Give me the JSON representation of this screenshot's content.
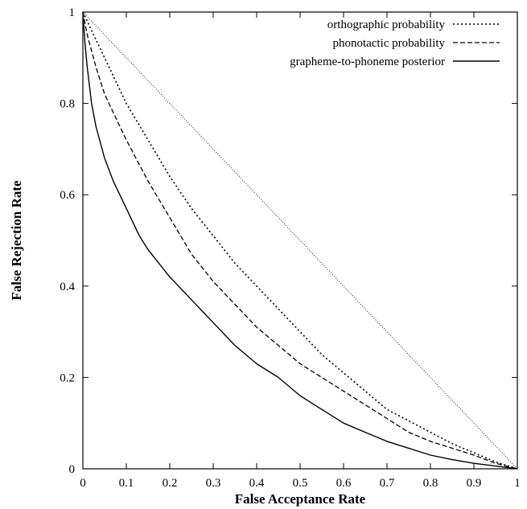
{
  "chart_data": {
    "type": "line",
    "title": "",
    "xlabel": "False Acceptance Rate",
    "ylabel": "False Rejection Rate",
    "xlim": [
      0,
      1
    ],
    "ylim": [
      0,
      1
    ],
    "xticks": [
      0,
      0.1,
      0.2,
      0.3,
      0.4,
      0.5,
      0.6,
      0.7,
      0.8,
      0.9,
      1
    ],
    "xtick_labels": [
      "0",
      "0.1",
      "0.2",
      "0.3",
      "0.4",
      "0.5",
      "0.6",
      "0.7",
      "0.8",
      "0.9",
      "1"
    ],
    "yticks": [
      0,
      0.2,
      0.4,
      0.6,
      0.8,
      1
    ],
    "ytick_labels": [
      "0",
      "0.2",
      "0.4",
      "0.6",
      "0.8",
      "1"
    ],
    "grid": false,
    "legend_position": "top-right",
    "series": [
      {
        "name": "orthographic probability",
        "style": "dotted",
        "color": "#000000",
        "x": [
          0,
          0.02,
          0.05,
          0.1,
          0.15,
          0.2,
          0.25,
          0.3,
          0.35,
          0.4,
          0.45,
          0.5,
          0.55,
          0.6,
          0.65,
          0.7,
          0.75,
          0.8,
          0.85,
          0.9,
          0.95,
          1.0
        ],
        "y": [
          1.0,
          0.96,
          0.9,
          0.8,
          0.72,
          0.64,
          0.57,
          0.51,
          0.45,
          0.4,
          0.35,
          0.3,
          0.25,
          0.21,
          0.17,
          0.13,
          0.105,
          0.08,
          0.055,
          0.035,
          0.015,
          0.0
        ]
      },
      {
        "name": "phonotactic probability",
        "style": "dashed",
        "color": "#000000",
        "x": [
          0,
          0.01,
          0.03,
          0.05,
          0.08,
          0.1,
          0.15,
          0.2,
          0.25,
          0.3,
          0.35,
          0.4,
          0.45,
          0.5,
          0.55,
          0.6,
          0.65,
          0.7,
          0.75,
          0.8,
          0.85,
          0.9,
          0.95,
          1.0
        ],
        "y": [
          1.0,
          0.95,
          0.88,
          0.82,
          0.76,
          0.72,
          0.63,
          0.55,
          0.47,
          0.41,
          0.36,
          0.31,
          0.27,
          0.23,
          0.2,
          0.17,
          0.14,
          0.11,
          0.08,
          0.06,
          0.045,
          0.03,
          0.012,
          0.0
        ]
      },
      {
        "name": "grapheme-to-phoneme posterior",
        "style": "solid",
        "color": "#000000",
        "x": [
          0,
          0.005,
          0.01,
          0.02,
          0.03,
          0.05,
          0.07,
          0.1,
          0.13,
          0.15,
          0.2,
          0.25,
          0.3,
          0.35,
          0.4,
          0.45,
          0.5,
          0.55,
          0.6,
          0.65,
          0.7,
          0.75,
          0.8,
          0.85,
          0.9,
          0.95,
          1.0
        ],
        "y": [
          1.0,
          0.93,
          0.88,
          0.8,
          0.75,
          0.68,
          0.63,
          0.57,
          0.51,
          0.48,
          0.42,
          0.37,
          0.32,
          0.27,
          0.23,
          0.2,
          0.16,
          0.13,
          0.1,
          0.08,
          0.06,
          0.045,
          0.03,
          0.02,
          0.012,
          0.006,
          0.0
        ]
      },
      {
        "name": "",
        "style": "thin-dotted-diagonal",
        "color": "#000000",
        "x": [
          0,
          1
        ],
        "y": [
          1,
          0
        ]
      }
    ]
  }
}
